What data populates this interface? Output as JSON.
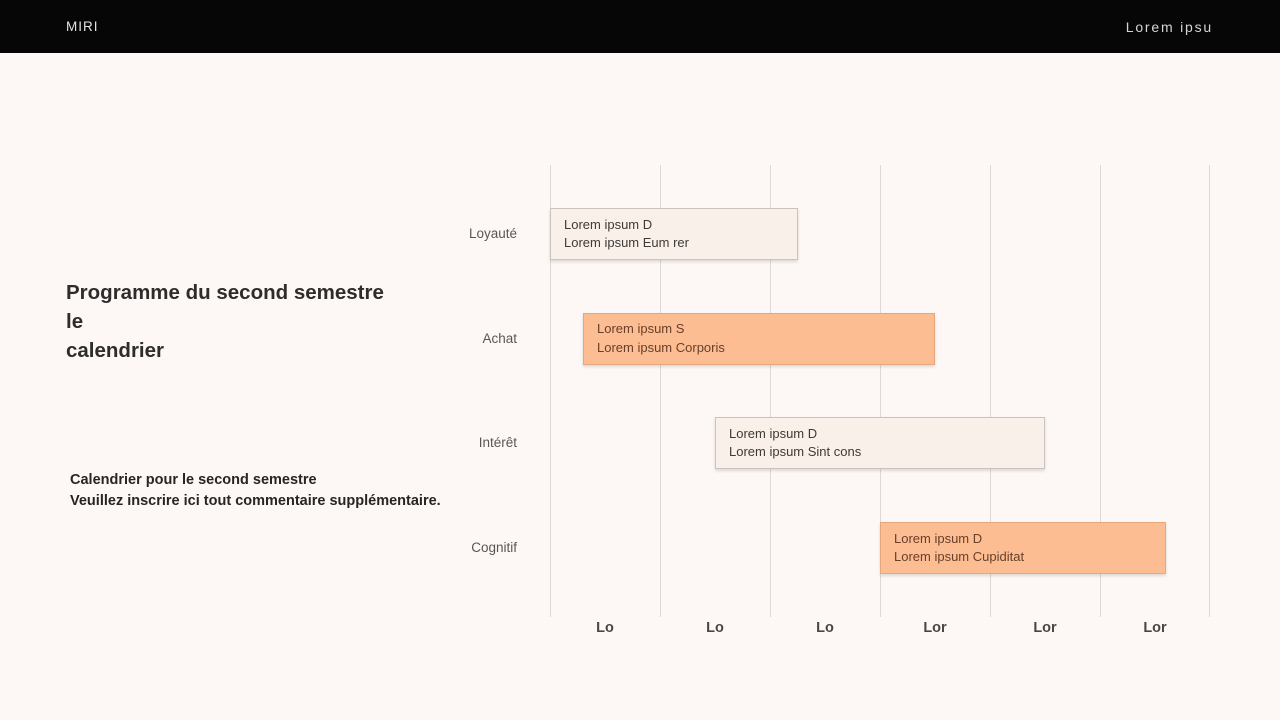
{
  "topbar": {
    "brand": "MIRI",
    "nav_label": "Lorem ipsu"
  },
  "intro": {
    "title_lines": [
      "Programme du second semestre",
      "le",
      "calendrier"
    ],
    "subtitle_lines": [
      "Calendrier pour le second semestre",
      "Veuillez inscrire ici tout commentaire supplémentaire."
    ]
  },
  "colors": {
    "page_bg": "#FDF8F6",
    "topbar_bg": "#060606",
    "bar_orange": "#FCBD93",
    "bar_orange_border": "#E5A87E",
    "bar_orange_text": "#683F28",
    "bar_cream": "#F9F0E9",
    "bar_cream_border": "#C9C3BE",
    "bar_cream_text": "#3E3A37",
    "gridline": "#DCD8D5"
  },
  "chart_data": {
    "type": "bar",
    "subtype": "gantt-timeline",
    "title": "",
    "xlabel": "",
    "ylabel": "",
    "grid": "vertical-only",
    "legend": "none",
    "columns": 6,
    "x_tick_labels": [
      "Lo",
      "Lo",
      "Lo",
      "Lor",
      "Lor",
      "Lor"
    ],
    "categories": [
      "Loyauté",
      "Achat",
      "Intérêt",
      "Cognitif"
    ],
    "bars": [
      {
        "category": "Loyauté",
        "label": [
          "Lorem ipsum D",
          "Lorem ipsum Eum rer"
        ],
        "start": 0.0,
        "end": 2.25,
        "color": "cream"
      },
      {
        "category": "Achat",
        "label": [
          "Lorem ipsum S",
          "Lorem ipsum Corporis"
        ],
        "start": 0.3,
        "end": 3.5,
        "color": "orange"
      },
      {
        "category": "Intérêt",
        "label": [
          "Lorem ipsum D",
          "Lorem ipsum Sint cons"
        ],
        "start": 1.5,
        "end": 4.5,
        "color": "cream"
      },
      {
        "category": "Cognitif",
        "label": [
          "Lorem ipsum D",
          "Lorem ipsum Cupiditat"
        ],
        "start": 3.0,
        "end": 5.6,
        "color": "orange"
      }
    ]
  }
}
